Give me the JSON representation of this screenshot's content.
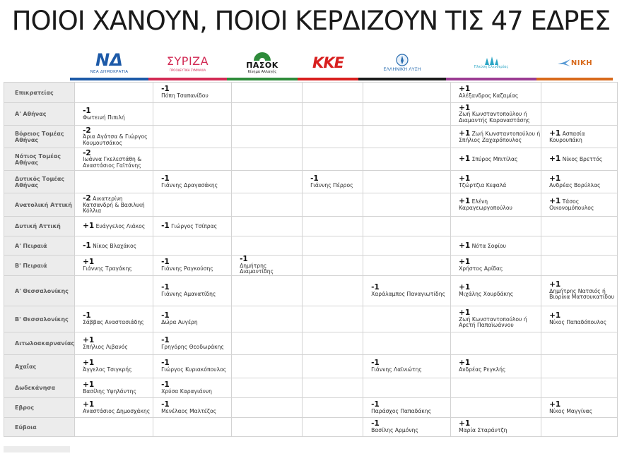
{
  "title": "ΠΟΙΟΙ ΧΑΝΟΥΝ, ΠΟΙΟΙ ΚΕΡΔΙΖΟΥΝ ΤΙΣ 47 ΕΔΡΕΣ",
  "parties": [
    {
      "key": "nd",
      "logo_text": "ΝΔ",
      "sub": "ΝΕΑ ΔΗΜΟΚΡΑΤΙΑ",
      "color": "#1d5aa8"
    },
    {
      "key": "syriza",
      "logo_text": "ΣΥΡΙΖΑ",
      "sub": "ΠΡΟΟΔΕΥΤΙΚΗ ΣΥΜΜΑΧΙΑ",
      "color": "#d22a54"
    },
    {
      "key": "pasok",
      "logo_text": "ΠΑΣΟΚ",
      "sub": "Κίνημα Αλλαγής",
      "color": "#2e8b3a"
    },
    {
      "key": "kke",
      "logo_text": "ΚΚΕ",
      "sub": "",
      "color": "#d8201f"
    },
    {
      "key": "elliniki_lysi",
      "logo_text": "ΕΛΛΗΝΙΚΗ ΛΥΣΗ",
      "sub": "",
      "color": "#1b1b1b"
    },
    {
      "key": "plefsi",
      "logo_text": "Πλεύση Ελευθερίας",
      "sub": "",
      "color": "#9b3c93"
    },
    {
      "key": "niki",
      "logo_text": "ΝΙΚΗ",
      "sub": "",
      "color": "#d86a1c"
    }
  ],
  "rows": [
    {
      "label": "Επικρατείας",
      "cells": [
        {},
        {
          "d": "-1",
          "n": "Πόπη Τσαπανίδου"
        },
        {},
        {},
        {},
        {
          "d": "+1",
          "n": "Αλέξανδρος Καζαμίας"
        },
        {}
      ]
    },
    {
      "label": "Α' Αθήνας",
      "cells": [
        {
          "d": "-1",
          "n": "Φωτεινή Πιπιλή"
        },
        {},
        {},
        {},
        {},
        {
          "d": "+1",
          "n": "Ζωή Κωνσταντοπούλου ή Διαμαντής Καραναστάσης"
        },
        {}
      ]
    },
    {
      "label": "Βόρειος Τομέας Αθήνας",
      "cells": [
        {
          "d": "-2",
          "n": "Άρια Αγάτσα & Γιώργος Κουμουτσάκος"
        },
        {},
        {},
        {},
        {},
        {
          "d": "+1",
          "n": "Ζωή Κωνσταντοπούλου ή Σπήλιος Ζαχαρόπουλος"
        },
        {
          "d": "+1",
          "n": "Ασπασία Κουρουπάκη"
        }
      ]
    },
    {
      "label": "Νότιος Τομέας Αθήνας",
      "cells": [
        {
          "d": "-2",
          "n": "Ιωάννα Γκελεστάθη & Αναστάσιος Γαϊτάνης"
        },
        {},
        {},
        {},
        {},
        {
          "d": "+1",
          "n": "Σπύρος Μπιτίλας"
        },
        {
          "d": "+1",
          "n": "Νίκος Βρεττός"
        }
      ]
    },
    {
      "label": "Δυτικός Τομέας Αθήνας",
      "cells": [
        {},
        {
          "d": "-1",
          "n": "Γιάννης Δραγασάκης"
        },
        {},
        {
          "d": "-1",
          "n": "Γιάννης Πέρρος"
        },
        {},
        {
          "d": "+1",
          "n": "Τζώρτζια Κεφαλά"
        },
        {
          "d": "+1",
          "n": "Ανδρέας Βορύλλας"
        }
      ]
    },
    {
      "label": "Ανατολική Αττική",
      "cells": [
        {
          "d": "-2",
          "n": "Αικατερίνη Κατσανδρή & Βασιλική Κόλλια"
        },
        {},
        {},
        {},
        {},
        {
          "d": "+1",
          "n": "Ελένη Καραγεωργοπούλου"
        },
        {
          "d": "+1",
          "n": "Τάσος Οικονομόπουλος"
        }
      ]
    },
    {
      "label": "Δυτική Αττική",
      "cells": [
        {
          "d": "+1",
          "n": "Ευάγγελος Λιάκος"
        },
        {
          "d": "-1",
          "n": "Γιώργος Τσίπρας"
        },
        {},
        {},
        {},
        {},
        {}
      ]
    },
    {
      "label": "Α' Πειραιά",
      "cells": [
        {
          "d": "-1",
          "n": "Νίκος Βλαχάκος"
        },
        {},
        {},
        {},
        {},
        {
          "d": "+1",
          "n": "Νότα Σοφίου"
        },
        {}
      ]
    },
    {
      "label": "Β' Πειραιά",
      "cells": [
        {
          "d": "+1",
          "n": "Γιάννης Τραγάκης"
        },
        {
          "d": "-1",
          "n": "Γιάννης Ραγκούσης"
        },
        {
          "d": "-1",
          "n": "Δημήτρης Διαμαντίδης"
        },
        {},
        {},
        {
          "d": "+1",
          "n": "Χρήστος Αρίδας"
        },
        {}
      ]
    },
    {
      "label": "Α' Θεσσαλονίκης",
      "cells": [
        {},
        {
          "d": "-1",
          "n": "Γιάννης Αμανατίδης"
        },
        {},
        {},
        {
          "d": "-1",
          "n": "Χαράλαμπος Παναγιωτίδης"
        },
        {
          "d": "+1",
          "n": "Μιχάλης Χουρδάκης"
        },
        {
          "d": "+1",
          "n": "Δημήτρης Νατσιός ή Βιορίκα Ματσουκατίδου"
        }
      ]
    },
    {
      "label": "Β' Θεσσαλονίκης",
      "cells": [
        {
          "d": "-1",
          "n": "Σάββας Αναστασιάδης"
        },
        {
          "d": "-1",
          "n": "Δώρα Αυγέρη"
        },
        {},
        {},
        {},
        {
          "d": "+1",
          "n": "Ζωή Κωνσταντοπούλου ή Αρετή Παπαϊωάννου"
        },
        {
          "d": "+1",
          "n": "Νίκος Παπαδόπουλος"
        }
      ]
    },
    {
      "label": "Αιτωλοακαρνανίας",
      "cells": [
        {
          "d": "+1",
          "n": "Σπήλιος Λιβανός"
        },
        {
          "d": "-1",
          "n": "Γρηγόρης Θεοδωράκης"
        },
        {},
        {},
        {},
        {},
        {}
      ]
    },
    {
      "label": "Αχαΐας",
      "cells": [
        {
          "d": "+1",
          "n": "Άγγελος Τσιγκρής"
        },
        {
          "d": "-1",
          "n": "Γιώργος Κυριακόπουλος"
        },
        {},
        {},
        {
          "d": "-1",
          "n": "Γιάννης Λαϊνιώτης"
        },
        {
          "d": "+1",
          "n": "Ανδρέας Ρεγκλής"
        },
        {}
      ]
    },
    {
      "label": "Δωδεκάνησα",
      "cells": [
        {
          "d": "+1",
          "n": "Βασίλης Υψηλάντης"
        },
        {
          "d": "-1",
          "n": "Χρύσα Καραγιάννη"
        },
        {},
        {},
        {},
        {},
        {}
      ]
    },
    {
      "label": "Εβρος",
      "cells": [
        {
          "d": "+1",
          "n": "Αναστάσιος Δημοσχάκης"
        },
        {
          "d": "-1",
          "n": "Μενέλαος Μαλτέζος"
        },
        {},
        {},
        {
          "d": "-1",
          "n": "Παράσχος Παπαδάκης"
        },
        {},
        {
          "d": "+1",
          "n": "Νίκος Μαγγίνας"
        }
      ]
    },
    {
      "label": "Εύβοια",
      "cells": [
        {},
        {},
        {},
        {},
        {
          "d": "-1",
          "n": "Βασίλης Αρμόνης"
        },
        {
          "d": "+1",
          "n": "Μαρία Σταράντζη"
        },
        {}
      ]
    }
  ]
}
